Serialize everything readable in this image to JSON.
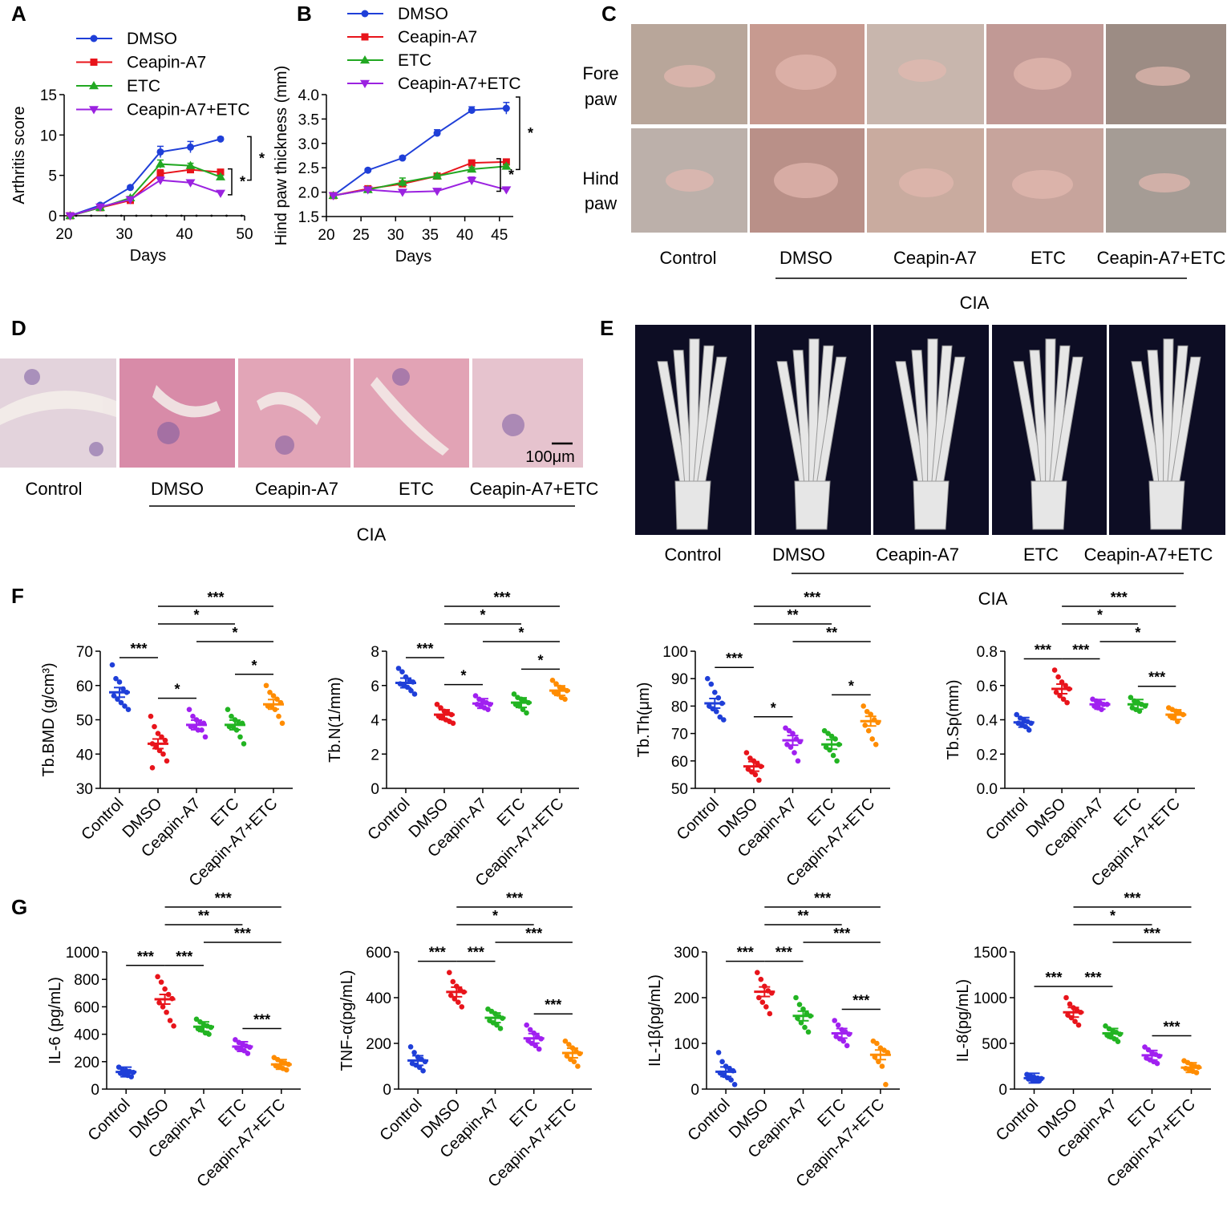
{
  "panel_labels": {
    "a": "A",
    "b": "B",
    "c": "C",
    "d": "D",
    "e": "E",
    "f": "F",
    "g": "G"
  },
  "colors": {
    "DMSO_line": "#1f3fd8",
    "Ceapin_line": "#e8141b",
    "ETC_line": "#22a822",
    "Combo_line": "#9b22e0",
    "Control_dot": "#1f3fd8",
    "DMSO_dot": "#e8141b",
    "Ceapin_F_dot": "#a020f0",
    "ETC_F_dot": "#22b422",
    "Ceapin_G_dot": "#22b422",
    "ETC_G_dot": "#a020f0",
    "Combo_dot": "#ff8c00"
  },
  "panel_c": {
    "row_labels": [
      [
        "Fore",
        "paw"
      ],
      [
        "Hind",
        "paw"
      ]
    ],
    "column_labels": [
      "Control",
      "DMSO",
      "Ceapin-A7",
      "ETC",
      "Ceapin-A7+ETC"
    ],
    "group_label": "CIA"
  },
  "panel_d": {
    "column_labels": [
      "Control",
      "DMSO",
      "Ceapin-A7",
      "ETC",
      "Ceapin-A7+ETC"
    ],
    "group_label": "CIA",
    "scale_bar": "100μm"
  },
  "panel_e": {
    "column_labels": [
      "Control",
      "DMSO",
      "Ceapin-A7",
      "ETC",
      "Ceapin-A7+ETC"
    ],
    "group_label": "CIA"
  },
  "chart_data": [
    {
      "id": "A",
      "type": "line",
      "xlabel": "Days",
      "ylabel": "Arthritis score",
      "xlim": [
        20,
        50
      ],
      "ylim": [
        0,
        15
      ],
      "xticks": [
        20,
        30,
        40,
        50
      ],
      "yticks": [
        0,
        5,
        10,
        15
      ],
      "x": [
        21,
        26,
        31,
        36,
        41,
        46
      ],
      "series": [
        {
          "name": "DMSO",
          "values": [
            0,
            1.3,
            3.5,
            7.9,
            8.5,
            9.5
          ],
          "err": [
            0,
            0.2,
            0.2,
            0.7,
            0.7,
            0.2
          ]
        },
        {
          "name": "Ceapin-A7",
          "values": [
            0,
            1.0,
            1.9,
            5.2,
            5.7,
            5.4
          ],
          "err": [
            0,
            0.2,
            0.2,
            0.5,
            0.4,
            0.2
          ]
        },
        {
          "name": "ETC",
          "values": [
            0,
            1.0,
            2.2,
            6.4,
            6.2,
            4.8
          ],
          "err": [
            0,
            0.2,
            0.2,
            0.5,
            0.3,
            0.2
          ]
        },
        {
          "name": "Ceapin-A7+ETC",
          "values": [
            0,
            1.1,
            2.0,
            4.4,
            4.1,
            2.8
          ],
          "err": [
            0,
            0.2,
            0.2,
            0.4,
            0.3,
            0.2
          ]
        }
      ],
      "significance": [
        "*",
        "*"
      ]
    },
    {
      "id": "B",
      "type": "line",
      "xlabel": "Days",
      "ylabel": "Hind paw thickness (mm)",
      "xlim": [
        20,
        47
      ],
      "ylim": [
        1.5,
        4.0
      ],
      "xticks": [
        20,
        25,
        30,
        35,
        40,
        45
      ],
      "yticks": [
        1.5,
        2.0,
        2.5,
        3.0,
        3.5,
        4.0
      ],
      "x": [
        21,
        26,
        31,
        36,
        41,
        46
      ],
      "series": [
        {
          "name": "DMSO",
          "values": [
            1.93,
            2.45,
            2.7,
            3.21,
            3.68,
            3.72
          ],
          "err": [
            0.03,
            0.03,
            0.04,
            0.07,
            0.07,
            0.12
          ]
        },
        {
          "name": "Ceapin-A7",
          "values": [
            1.93,
            2.07,
            2.17,
            2.33,
            2.6,
            2.62
          ],
          "err": [
            0.03,
            0.03,
            0.04,
            0.04,
            0.04,
            0.04
          ]
        },
        {
          "name": "ETC",
          "values": [
            1.93,
            2.05,
            2.2,
            2.33,
            2.47,
            2.53
          ],
          "err": [
            0.03,
            0.03,
            0.09,
            0.04,
            0.04,
            0.04
          ]
        },
        {
          "name": "Ceapin-A7+ETC",
          "values": [
            1.93,
            2.05,
            2.0,
            2.02,
            2.24,
            2.05
          ],
          "err": [
            0.03,
            0.03,
            0.03,
            0.03,
            0.07,
            0.03
          ]
        }
      ],
      "significance": [
        "*",
        "*"
      ]
    },
    {
      "id": "F1",
      "type": "scatter",
      "ylabel": "Tb.BMD (g/cm³)",
      "ylim": [
        30,
        70
      ],
      "yticks": [
        30,
        40,
        50,
        60,
        70
      ],
      "categories": [
        "Control",
        "DMSO",
        "Ceapin-A7",
        "ETC",
        "Ceapin-A7+ETC"
      ],
      "means": [
        58,
        43,
        48.5,
        48.5,
        54.5
      ],
      "points": [
        [
          66,
          62,
          61,
          59,
          58,
          57,
          56,
          55,
          54,
          53
        ],
        [
          51,
          48,
          46,
          45,
          44,
          43,
          42,
          41,
          40,
          38,
          36
        ],
        [
          53,
          51,
          50,
          49,
          49,
          48,
          48,
          47,
          47,
          45
        ],
        [
          53,
          51,
          50,
          49,
          49,
          48,
          48,
          47,
          45,
          43
        ],
        [
          60,
          58,
          57,
          56,
          55,
          54,
          54,
          53,
          51,
          49
        ]
      ],
      "comparisons": [
        [
          "***"
        ],
        [
          "*"
        ],
        [
          "*"
        ],
        [
          "*"
        ],
        [
          "*"
        ],
        [
          "***"
        ]
      ]
    },
    {
      "id": "F2",
      "type": "scatter",
      "ylabel": "Tb.N(1/mm)",
      "ylim": [
        0,
        8
      ],
      "yticks": [
        0,
        2,
        4,
        6,
        8
      ],
      "categories": [
        "Control",
        "DMSO",
        "Ceapin-A7",
        "ETC",
        "Ceapin-A7+ETC"
      ],
      "means": [
        6.15,
        4.3,
        4.95,
        5.0,
        5.7
      ],
      "points": [
        [
          7.0,
          6.8,
          6.5,
          6.3,
          6.2,
          6.1,
          6.0,
          5.9,
          5.7,
          5.5
        ],
        [
          4.9,
          4.7,
          4.5,
          4.4,
          4.3,
          4.2,
          4.1,
          4.0,
          3.9,
          3.8
        ],
        [
          5.4,
          5.2,
          5.1,
          5.0,
          4.9,
          4.9,
          4.8,
          4.7,
          4.6
        ],
        [
          5.5,
          5.3,
          5.2,
          5.1,
          5.0,
          4.9,
          4.8,
          4.6,
          4.4
        ],
        [
          6.3,
          6.1,
          5.9,
          5.8,
          5.7,
          5.6,
          5.5,
          5.3,
          5.2
        ]
      ],
      "comparisons": [
        [
          "***"
        ],
        [
          "*"
        ],
        [
          "*"
        ],
        [
          "*"
        ],
        [
          "*"
        ],
        [
          "***"
        ]
      ]
    },
    {
      "id": "F3",
      "type": "scatter",
      "ylabel": "Tb.Th(μm)",
      "ylim": [
        50,
        100
      ],
      "yticks": [
        50,
        60,
        70,
        80,
        90,
        100
      ],
      "categories": [
        "Control",
        "DMSO",
        "Ceapin-A7",
        "ETC",
        "Ceapin-A7+ETC"
      ],
      "means": [
        81,
        58,
        67.5,
        66,
        74.5
      ],
      "points": [
        [
          90,
          88,
          85,
          83,
          81,
          80,
          79,
          78,
          76,
          75
        ],
        [
          63,
          61,
          60,
          59,
          58,
          57,
          56,
          55,
          53
        ],
        [
          72,
          71,
          70,
          68,
          67,
          66,
          65,
          63,
          60
        ],
        [
          71,
          70,
          69,
          68,
          66,
          65,
          64,
          62,
          60
        ],
        [
          80,
          78,
          77,
          75,
          74,
          73,
          71,
          68,
          66
        ]
      ],
      "comparisons": [
        [
          "***"
        ],
        [
          "*"
        ],
        [
          "**"
        ],
        [
          "**"
        ],
        [
          "*"
        ],
        [
          "***"
        ]
      ]
    },
    {
      "id": "F4",
      "type": "scatter",
      "ylabel": "Tb.Sp(mm)",
      "ylim": [
        0.0,
        0.8
      ],
      "yticks": [
        0.0,
        0.2,
        0.4,
        0.6,
        0.8
      ],
      "categories": [
        "Control",
        "DMSO",
        "Ceapin-A7",
        "ETC",
        "Ceapin-A7+ETC"
      ],
      "means": [
        0.385,
        0.58,
        0.49,
        0.49,
        0.43
      ],
      "points": [
        [
          0.43,
          0.41,
          0.4,
          0.39,
          0.38,
          0.38,
          0.37,
          0.36,
          0.34
        ],
        [
          0.69,
          0.65,
          0.62,
          0.6,
          0.58,
          0.56,
          0.54,
          0.52,
          0.5
        ],
        [
          0.52,
          0.51,
          0.5,
          0.49,
          0.49,
          0.48,
          0.47,
          0.46
        ],
        [
          0.53,
          0.51,
          0.5,
          0.49,
          0.48,
          0.47,
          0.46,
          0.45
        ],
        [
          0.47,
          0.46,
          0.45,
          0.44,
          0.43,
          0.42,
          0.41,
          0.39
        ]
      ],
      "comparisons": [
        [
          "***"
        ],
        [
          "***"
        ],
        [
          "*"
        ],
        [
          "*"
        ],
        [
          "***"
        ],
        [
          "***"
        ]
      ]
    },
    {
      "id": "G1",
      "type": "scatter",
      "ylabel": "IL-6 (pg/mL)",
      "ylim": [
        0,
        1000
      ],
      "yticks": [
        0,
        200,
        400,
        600,
        800,
        1000
      ],
      "categories": [
        "Control",
        "DMSO",
        "Ceapin-A7",
        "ETC",
        "Ceapin-A7+ETC"
      ],
      "means": [
        125,
        655,
        455,
        310,
        180
      ],
      "points": [
        [
          160,
          145,
          135,
          128,
          122,
          115,
          108,
          100,
          90
        ],
        [
          820,
          780,
          730,
          690,
          660,
          630,
          600,
          560,
          500,
          460
        ],
        [
          510,
          490,
          470,
          460,
          450,
          440,
          430,
          410,
          400
        ],
        [
          360,
          340,
          330,
          315,
          305,
          300,
          290,
          280,
          260
        ],
        [
          230,
          215,
          200,
          190,
          180,
          170,
          160,
          150,
          140
        ]
      ],
      "comparisons": [
        [
          "***"
        ],
        [
          "***"
        ],
        [
          "***"
        ],
        [
          "***"
        ],
        [
          "**"
        ],
        [
          "***"
        ]
      ]
    },
    {
      "id": "G2",
      "type": "scatter",
      "ylabel": "TNF-α(pg/mL)",
      "ylim": [
        0,
        600
      ],
      "yticks": [
        0,
        200,
        400,
        600
      ],
      "categories": [
        "Control",
        "DMSO",
        "Ceapin-A7",
        "ETC",
        "Ceapin-A7+ETC"
      ],
      "means": [
        125,
        425,
        312,
        222,
        158
      ],
      "points": [
        [
          185,
          160,
          140,
          130,
          120,
          112,
          105,
          95,
          80
        ],
        [
          510,
          470,
          450,
          435,
          425,
          410,
          395,
          380,
          360
        ],
        [
          350,
          340,
          330,
          318,
          310,
          300,
          290,
          280,
          265
        ],
        [
          280,
          260,
          245,
          230,
          220,
          212,
          200,
          190,
          175
        ],
        [
          210,
          195,
          180,
          165,
          155,
          145,
          130,
          120,
          100
        ]
      ],
      "comparisons": [
        [
          "***"
        ],
        [
          "***"
        ],
        [
          "***"
        ],
        [
          "***"
        ],
        [
          "*"
        ],
        [
          "***"
        ]
      ]
    },
    {
      "id": "G3",
      "type": "scatter",
      "ylabel": "IL-1β(pg/mL)",
      "ylim": [
        0,
        300
      ],
      "yticks": [
        0,
        100,
        200,
        300
      ],
      "categories": [
        "Control",
        "DMSO",
        "Ceapin-A7",
        "ETC",
        "Ceapin-A7+ETC"
      ],
      "means": [
        38,
        213,
        160,
        122,
        75
      ],
      "points": [
        [
          80,
          60,
          50,
          45,
          40,
          35,
          30,
          25,
          20,
          10
        ],
        [
          255,
          240,
          225,
          215,
          210,
          200,
          190,
          180,
          165
        ],
        [
          200,
          185,
          175,
          165,
          160,
          155,
          145,
          135,
          125
        ],
        [
          150,
          140,
          130,
          125,
          120,
          115,
          110,
          105,
          95
        ],
        [
          105,
          100,
          90,
          85,
          80,
          70,
          60,
          50,
          10
        ]
      ],
      "comparisons": [
        [
          "***"
        ],
        [
          "***"
        ],
        [
          "***"
        ],
        [
          "***"
        ],
        [
          "**"
        ],
        [
          "***"
        ]
      ]
    },
    {
      "id": "G4",
      "type": "scatter",
      "ylabel": "IL-8(pg/mL)",
      "ylim": [
        0,
        1500
      ],
      "yticks": [
        0,
        500,
        1000,
        1500
      ],
      "categories": [
        "Control",
        "DMSO",
        "Ceapin-A7",
        "ETC",
        "Ceapin-A7+ETC"
      ],
      "means": [
        120,
        840,
        610,
        370,
        235
      ],
      "points": [
        [
          160,
          145,
          130,
          120,
          115,
          110,
          100,
          95,
          90
        ],
        [
          1000,
          930,
          890,
          860,
          840,
          810,
          780,
          740,
          700
        ],
        [
          690,
          660,
          640,
          620,
          600,
          590,
          570,
          550,
          520
        ],
        [
          460,
          430,
          400,
          380,
          360,
          340,
          320,
          300,
          280
        ],
        [
          310,
          290,
          270,
          250,
          240,
          225,
          210,
          195,
          180
        ]
      ],
      "comparisons": [
        [
          "***"
        ],
        [
          "***"
        ],
        [
          "***"
        ],
        [
          "***"
        ],
        [
          "*"
        ],
        [
          "***"
        ]
      ]
    }
  ]
}
